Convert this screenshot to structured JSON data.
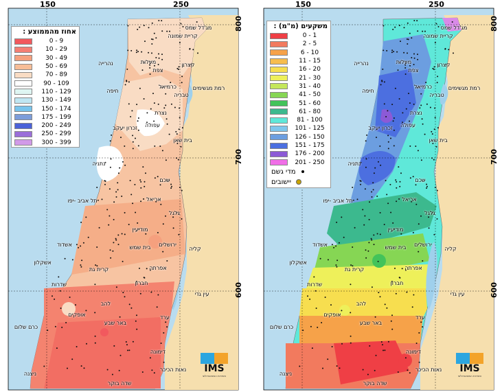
{
  "axes": {
    "x_ticks": [
      "150",
      "250"
    ],
    "y_ticks": [
      "800",
      "700",
      "600"
    ]
  },
  "left_map": {
    "legend_title": "אחוז מהממוצע :",
    "legend": [
      {
        "range": "0 - 9",
        "color": "#f2595e"
      },
      {
        "range": "10 - 29",
        "color": "#f47f74"
      },
      {
        "range": "30 - 49",
        "color": "#f5a07e"
      },
      {
        "range": "50 - 69",
        "color": "#f7bd97"
      },
      {
        "range": "70 - 89",
        "color": "#f9dcc4"
      },
      {
        "range": "90 - 109",
        "color": "#ffffff"
      },
      {
        "range": "110 - 129",
        "color": "#def5f2"
      },
      {
        "range": "130 - 149",
        "color": "#bfe6f2"
      },
      {
        "range": "150 - 174",
        "color": "#78c4ec"
      },
      {
        "range": "175 - 199",
        "color": "#7c9dda"
      },
      {
        "range": "200 - 249",
        "color": "#4b62d8"
      },
      {
        "range": "250 - 299",
        "color": "#9b6fd9"
      },
      {
        "range": "300 - 399",
        "color": "#d19ae8"
      }
    ]
  },
  "right_map": {
    "legend_title": "משקעים (מ\"מ) :",
    "legend": [
      {
        "range": "0 - 1",
        "color": "#ef3f45"
      },
      {
        "range": "2 - 5",
        "color": "#f27a5e"
      },
      {
        "range": "6 - 10",
        "color": "#f6a249"
      },
      {
        "range": "11 - 15",
        "color": "#f7bd4e"
      },
      {
        "range": "16 - 20",
        "color": "#f7de4f"
      },
      {
        "range": "21 - 30",
        "color": "#eef05a"
      },
      {
        "range": "31 - 40",
        "color": "#c4e75b"
      },
      {
        "range": "41 - 50",
        "color": "#86d654"
      },
      {
        "range": "51 - 60",
        "color": "#43c35a"
      },
      {
        "range": "61 - 80",
        "color": "#3cb98e"
      },
      {
        "range": "81 - 100",
        "color": "#5fe8d9"
      },
      {
        "range": "101 - 125",
        "color": "#7fc6ec"
      },
      {
        "range": "126 - 150",
        "color": "#6c9ee0"
      },
      {
        "range": "151 - 175",
        "color": "#4c6fe0"
      },
      {
        "range": "176 - 200",
        "color": "#8c5ad6"
      },
      {
        "range": "201 - 250",
        "color": "#f06ee7"
      }
    ],
    "symbols": {
      "rain_gauges": "מדי גשם",
      "settlements": "יישובים"
    }
  },
  "places_left": [
    "מג'דל שמס",
    "קריית שמונה",
    "קצרין",
    "מעלות",
    "נהרייה",
    "צפת",
    "רמת מגשימים",
    "כרמיאל",
    "חיפה",
    "טבריה",
    "נצרת",
    "זכרון יעקב",
    "עפולה",
    "בית שאן",
    "נתניה",
    "שכם",
    "תל אביב -יפו",
    "אריאל",
    "גלגל",
    "מודיעין",
    "אשדוד",
    "בית שמש",
    "ירושלים",
    "קליה",
    "אשקלון",
    "קרית גת",
    "אפרתה",
    "שדרות",
    "חברון",
    "עין גדי",
    "להב",
    "אופקים",
    "באר שבע",
    "ערד",
    "כרם שלום",
    "דימונה",
    "נאות הכיכר",
    "ניצנה",
    "שדה בוקר"
  ],
  "places_right": [
    "מג'דל שמס",
    "קריית שמונה",
    "קצרין",
    "מעלות",
    "נהרייה",
    "צפת",
    "רמת מגשימים",
    "כרמיאל",
    "חיפה",
    "טבריה",
    "נצרת",
    "זכרון יעקב",
    "עפולה",
    "בית שאן",
    "נתניה",
    "שכם",
    "תל אביב -יפו",
    "אריאל",
    "גלגל",
    "מודיעין",
    "אשדוד",
    "בית שמש",
    "ירושלים",
    "קליה",
    "אשקלון",
    "קרית גת",
    "אפרתה",
    "שדרות",
    "חברון",
    "עין גדי",
    "להב",
    "אופקים",
    "באר שבע",
    "ערד",
    "כרם שלום",
    "דימונה",
    "נאות הכיכר",
    "ניצנה",
    "שדה בוקר"
  ],
  "logo": {
    "name": "IMS",
    "subtitle": "השירות המטאורולוגי"
  }
}
